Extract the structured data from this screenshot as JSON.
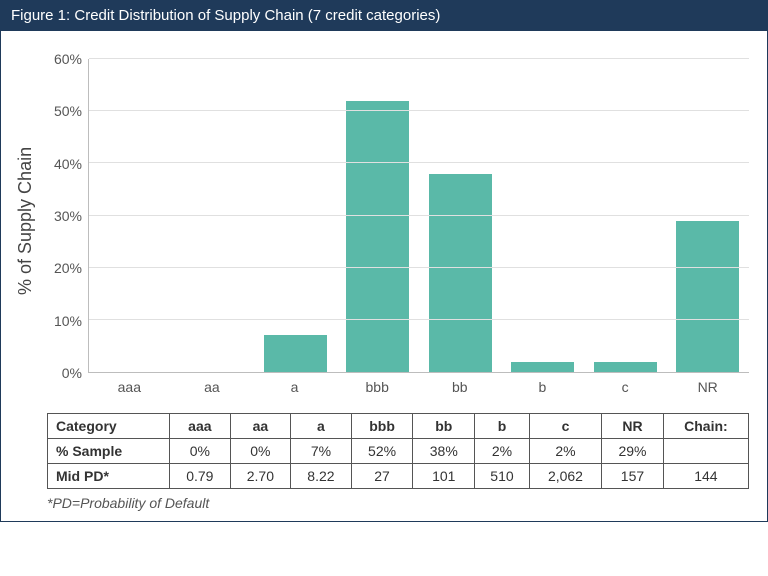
{
  "title": "Figure 1: Credit Distribution of Supply Chain (7 credit categories)",
  "chart": {
    "type": "bar",
    "ylabel": "% of Supply Chain",
    "ylim": [
      0,
      60
    ],
    "ytick_step": 10,
    "yticks": [
      0,
      10,
      20,
      30,
      40,
      50,
      60
    ],
    "ytick_suffix": "%",
    "categories": [
      "aaa",
      "aa",
      "a",
      "bbb",
      "bb",
      "b",
      "c",
      "NR"
    ],
    "values": [
      0,
      0,
      7,
      52,
      38,
      2,
      2,
      29
    ],
    "bar_color": "#5ab9a8",
    "grid_color": "#e0e0e0",
    "axis_color": "#bdbdbd",
    "label_color": "#555555",
    "title_bg": "#1f3a5a",
    "title_color": "#ffffff",
    "ylabel_fontsize": 18,
    "tick_fontsize": 14
  },
  "table": {
    "row_headers": [
      "Category",
      "% Sample",
      "Mid PD*"
    ],
    "columns": [
      "aaa",
      "aa",
      "a",
      "bbb",
      "bb",
      "b",
      "c",
      "NR",
      "Chain:"
    ],
    "rows": [
      [
        "0%",
        "0%",
        "7%",
        "52%",
        "38%",
        "2%",
        "2%",
        "29%",
        ""
      ],
      [
        "0.79",
        "2.70",
        "8.22",
        "27",
        "101",
        "510",
        "2,062",
        "157",
        "144"
      ]
    ]
  },
  "footnote": "*PD=Probability of Default"
}
